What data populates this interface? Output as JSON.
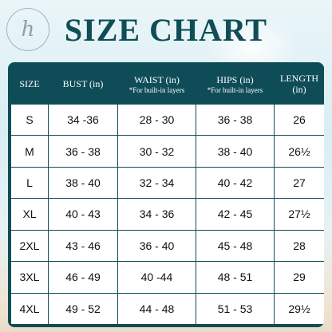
{
  "logo": {
    "glyph": "h"
  },
  "title": "SIZE CHART",
  "headers": {
    "size": "SIZE",
    "bust": "BUST (in)",
    "waist": "WAIST (in)",
    "waist_note": "*For built-in layers",
    "hips": "HIPS (in)",
    "hips_note": "*For built-in layers",
    "length_line1": "LENGTH",
    "length_line2": "(in)"
  },
  "rows": [
    {
      "size": "S",
      "bust": "34 -36",
      "waist": "28 - 30",
      "hips": "36 - 38",
      "length": "26"
    },
    {
      "size": "M",
      "bust": "36 - 38",
      "waist": "30 - 32",
      "hips": "38 - 40",
      "length": "26½"
    },
    {
      "size": "L",
      "bust": "38 - 40",
      "waist": "32 - 34",
      "hips": "40 - 42",
      "length": "27"
    },
    {
      "size": "XL",
      "bust": "40 - 43",
      "waist": "34 - 36",
      "hips": "42 - 45",
      "length": "27½"
    },
    {
      "size": "2XL",
      "bust": "43 - 46",
      "waist": "36 - 40",
      "hips": "45 - 48",
      "length": "28"
    },
    {
      "size": "3XL",
      "bust": "46 - 49",
      "waist": "40 -44",
      "hips": "48 - 51",
      "length": "29"
    },
    {
      "size": "4XL",
      "bust": "49 - 52",
      "waist": "44 - 48",
      "hips": "51 - 53",
      "length": "29½"
    }
  ],
  "colors": {
    "header_bg": "#0e4d57",
    "title": "#0f4d57",
    "cell_bg": "#ffffff"
  }
}
